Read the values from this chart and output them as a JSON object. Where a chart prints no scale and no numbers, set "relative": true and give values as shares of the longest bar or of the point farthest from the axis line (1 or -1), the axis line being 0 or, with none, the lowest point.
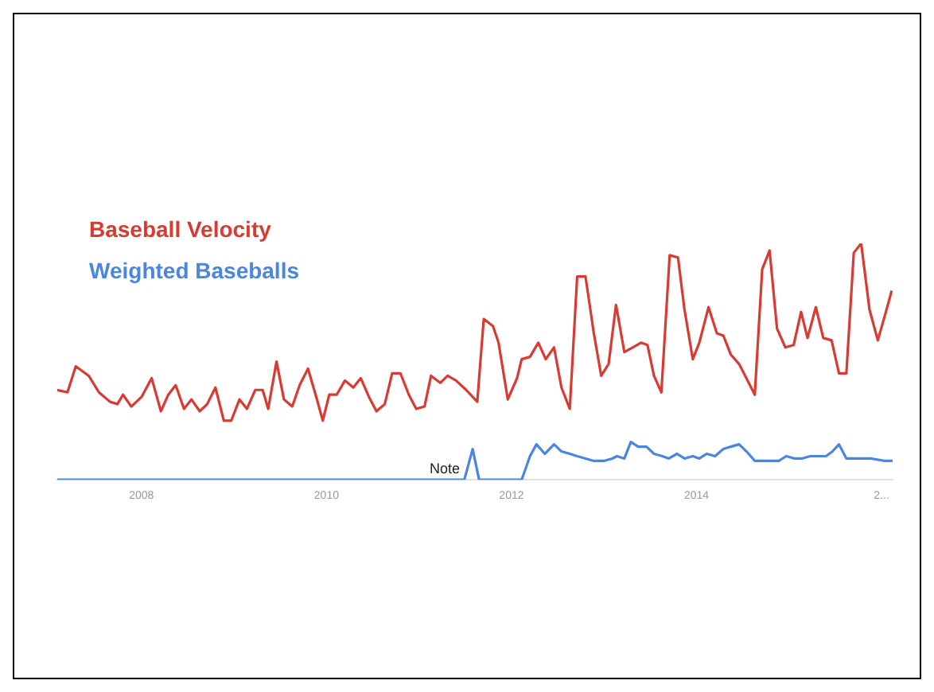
{
  "chart_data": {
    "type": "line",
    "relative": true,
    "legend": "top left",
    "grid": false,
    "marker": "none",
    "xlim": [
      2007.09,
      2016.12
    ],
    "xticks": [
      2008,
      2010,
      2012,
      2014,
      {
        "value": 2016,
        "label": "2..."
      }
    ],
    "annotations": [
      {
        "text": "Note",
        "x": 2011.58,
        "y": 0.13
      }
    ],
    "series": [
      {
        "name": "Baseball Velocity",
        "color": "#d93a32",
        "x": [
          2007.09,
          2007.2,
          2007.29,
          2007.43,
          2007.54,
          2007.66,
          2007.74,
          2007.8,
          2007.89,
          2008,
          2008.11,
          2008.21,
          2008.29,
          2008.37,
          2008.46,
          2008.54,
          2008.63,
          2008.71,
          2008.8,
          2008.89,
          2008.97,
          2009.06,
          2009.14,
          2009.23,
          2009.31,
          2009.37,
          2009.46,
          2009.54,
          2009.63,
          2009.71,
          2009.8,
          2009.89,
          2009.96,
          2010.03,
          2010.11,
          2010.2,
          2010.29,
          2010.37,
          2010.46,
          2010.54,
          2010.63,
          2010.71,
          2010.8,
          2010.89,
          2010.97,
          2011.06,
          2011.13,
          2011.23,
          2011.31,
          2011.4,
          2011.51,
          2011.63,
          2011.7,
          2011.8,
          2011.86,
          2011.96,
          2012.06,
          2012.11,
          2012.2,
          2012.29,
          2012.37,
          2012.46,
          2012.54,
          2012.63,
          2012.71,
          2012.8,
          2012.89,
          2012.97,
          2013.05,
          2013.13,
          2013.22,
          2013.31,
          2013.4,
          2013.47,
          2013.54,
          2013.62,
          2013.71,
          2013.8,
          2013.87,
          2013.96,
          2014.03,
          2014.13,
          2014.22,
          2014.29,
          2014.37,
          2014.46,
          2014.63,
          2014.71,
          2014.79,
          2014.87,
          2014.96,
          2015.05,
          2015.13,
          2015.2,
          2015.29,
          2015.37,
          2015.46,
          2015.54,
          2015.62,
          2015.7,
          2015.78,
          2015.87,
          2015.96,
          2016.04,
          2016.11
        ],
        "values": [
          0.38,
          0.37,
          0.48,
          0.44,
          0.37,
          0.33,
          0.32,
          0.36,
          0.31,
          0.35,
          0.43,
          0.29,
          0.36,
          0.4,
          0.3,
          0.34,
          0.29,
          0.32,
          0.39,
          0.25,
          0.25,
          0.34,
          0.3,
          0.38,
          0.38,
          0.3,
          0.5,
          0.34,
          0.31,
          0.4,
          0.47,
          0.35,
          0.25,
          0.36,
          0.36,
          0.42,
          0.39,
          0.43,
          0.35,
          0.29,
          0.32,
          0.45,
          0.45,
          0.36,
          0.3,
          0.31,
          0.44,
          0.41,
          0.44,
          0.42,
          0.38,
          0.33,
          0.68,
          0.65,
          0.58,
          0.34,
          0.43,
          0.51,
          0.52,
          0.58,
          0.51,
          0.56,
          0.39,
          0.3,
          0.86,
          0.86,
          0.62,
          0.44,
          0.49,
          0.74,
          0.54,
          0.56,
          0.58,
          0.57,
          0.44,
          0.37,
          0.95,
          0.94,
          0.72,
          0.51,
          0.58,
          0.73,
          0.62,
          0.61,
          0.53,
          0.49,
          0.36,
          0.89,
          0.97,
          0.64,
          0.56,
          0.57,
          0.71,
          0.6,
          0.73,
          0.6,
          0.59,
          0.45,
          0.45,
          0.96,
          1,
          0.72,
          0.59,
          0.7,
          0.8
        ]
      },
      {
        "name": "Weighted Baseballs",
        "color": "#4a86e0",
        "x": [
          2007.09,
          2011.49,
          2011.58,
          2011.65,
          2012.11,
          2012.2,
          2012.27,
          2012.36,
          2012.46,
          2012.54,
          2012.63,
          2012.71,
          2012.8,
          2012.89,
          2013,
          2013.09,
          2013.14,
          2013.22,
          2013.29,
          2013.37,
          2013.46,
          2013.54,
          2013.63,
          2013.7,
          2013.79,
          2013.87,
          2013.96,
          2014.03,
          2014.11,
          2014.2,
          2014.29,
          2014.37,
          2014.46,
          2014.54,
          2014.63,
          2014.71,
          2014.8,
          2014.89,
          2014.97,
          2015.06,
          2015.14,
          2015.23,
          2015.31,
          2015.4,
          2015.47,
          2015.54,
          2015.62,
          2015.71,
          2015.8,
          2015.89,
          2016.03,
          2016.12
        ],
        "values": [
          0,
          0,
          0.13,
          0,
          0,
          0.1,
          0.15,
          0.11,
          0.15,
          0.12,
          0.11,
          0.1,
          0.09,
          0.08,
          0.08,
          0.09,
          0.1,
          0.09,
          0.16,
          0.14,
          0.14,
          0.11,
          0.1,
          0.09,
          0.11,
          0.09,
          0.1,
          0.09,
          0.11,
          0.1,
          0.13,
          0.14,
          0.15,
          0.12,
          0.08,
          0.08,
          0.08,
          0.08,
          0.1,
          0.09,
          0.09,
          0.1,
          0.1,
          0.1,
          0.12,
          0.15,
          0.09,
          0.09,
          0.09,
          0.09,
          0.08,
          0.08
        ]
      }
    ]
  }
}
